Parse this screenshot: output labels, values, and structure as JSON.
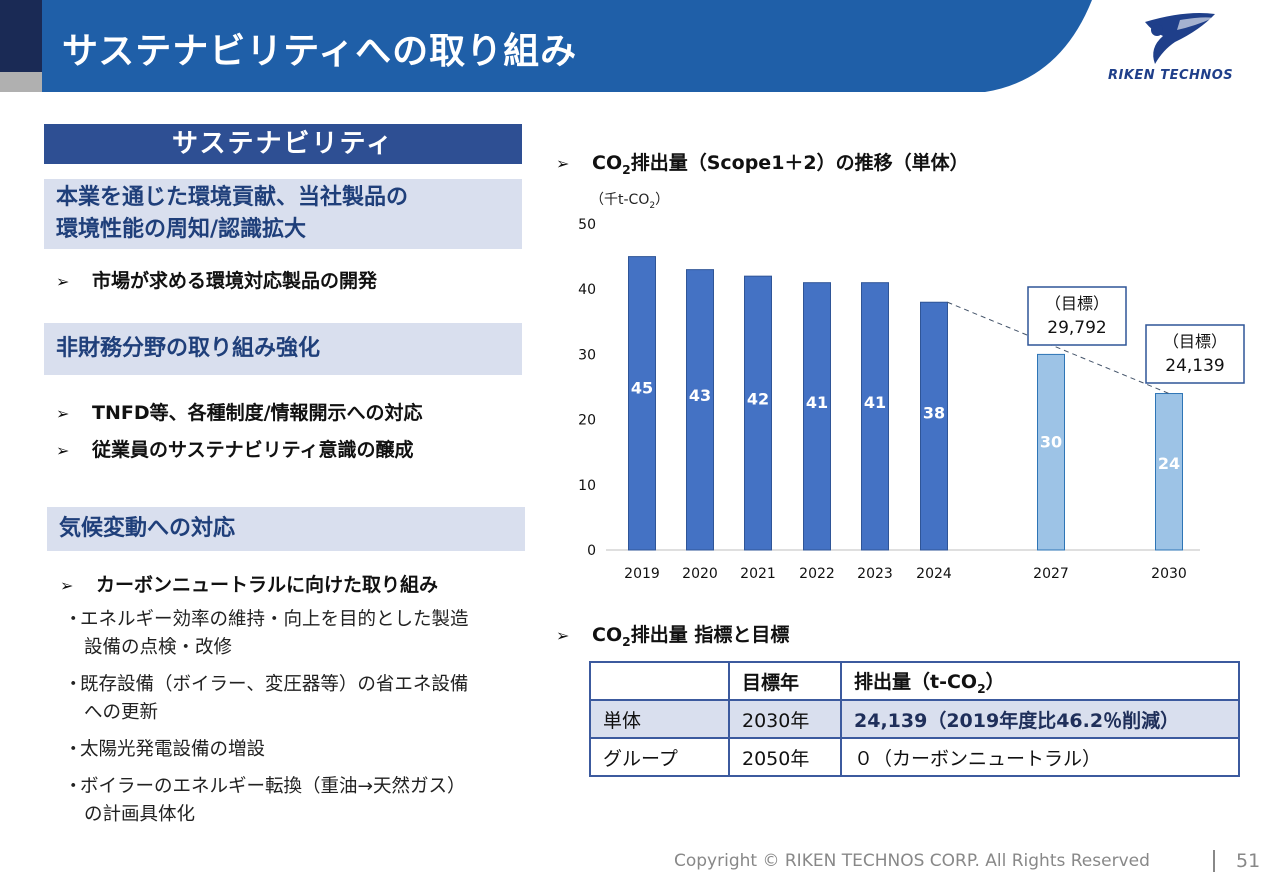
{
  "header": {
    "title": "サステナビリティへの取り組み",
    "logo_text": "RIKEN TECHNOS",
    "brand_color": "#1f3f8a",
    "band_color": "#1f5fa8"
  },
  "left": {
    "main_heading": "サステナビリティ",
    "sections": [
      {
        "heading_line1": "本業を通じた環境貢献、当社製品の",
        "heading_line2": "環境性能の周知/認識拡大",
        "bullets": [
          "市場が求める環境対応製品の開発"
        ]
      },
      {
        "heading": "非財務分野の取り組み強化",
        "bullets": [
          "TNFD等、各種制度/情報開示への対応",
          "従業員のサステナビリティ意識の醸成"
        ]
      },
      {
        "heading": "気候変動への対応",
        "bullets": [
          "カーボンニュートラルに向けた取り組み"
        ],
        "subitems": [
          {
            "line1": "エネルギー効率の維持・向上を目的とした製造",
            "line2": "設備の点検・改修"
          },
          {
            "line1": "既存設備（ボイラー、変圧器等）の省エネ設備",
            "line2": "への更新"
          },
          {
            "line1": "太陽光発電設備の増設",
            "line2": ""
          },
          {
            "line1": "ボイラーのエネルギー転換（重油→天然ガス）",
            "line2": "の計画具体化"
          }
        ]
      }
    ]
  },
  "right": {
    "chart_title_pre": "CO",
    "chart_title_sub": "2",
    "chart_title_post": "排出量（Scope1＋2）の推移（単体）",
    "table_title_pre": "CO",
    "table_title_sub": "2",
    "table_title_post": "排出量  指標と目標",
    "table": {
      "header": [
        "",
        "目標年",
        "排出量（t-CO"
      ],
      "header_sub": "2",
      "header_close": "）",
      "rows": [
        [
          "単体",
          "2030年",
          "24,139（2019年度比46.2％削減）"
        ],
        [
          "グループ",
          "2050年",
          "０（カーボンニュートラル）"
        ]
      ]
    }
  },
  "chart_data": {
    "type": "bar",
    "unit_label_pre": "（千t-CO",
    "unit_label_sub": "2",
    "unit_label_post": "）",
    "categories": [
      "2019",
      "2020",
      "2021",
      "2022",
      "2023",
      "2024",
      "2027",
      "2030"
    ],
    "values": [
      45,
      43,
      42,
      41,
      41,
      38,
      30,
      24
    ],
    "ylim": [
      0,
      50
    ],
    "yticks": [
      0,
      10,
      20,
      30,
      40,
      50
    ],
    "target_flags": [
      false,
      false,
      false,
      false,
      false,
      false,
      true,
      true
    ],
    "actual_color": "#4472c4",
    "target_color": "#9dc3e6",
    "target_callouts": [
      {
        "category": "2027",
        "label": "（目標）",
        "value": "29,792"
      },
      {
        "category": "2030",
        "label": "（目標）",
        "value": "24,139"
      }
    ],
    "trend_line": {
      "from": "2024",
      "to": "2030",
      "style": "dashed"
    },
    "grid": false
  },
  "footer": {
    "copyright": "Copyright © RIKEN TECHNOS CORP. All Rights Reserved",
    "page_number": "51"
  }
}
